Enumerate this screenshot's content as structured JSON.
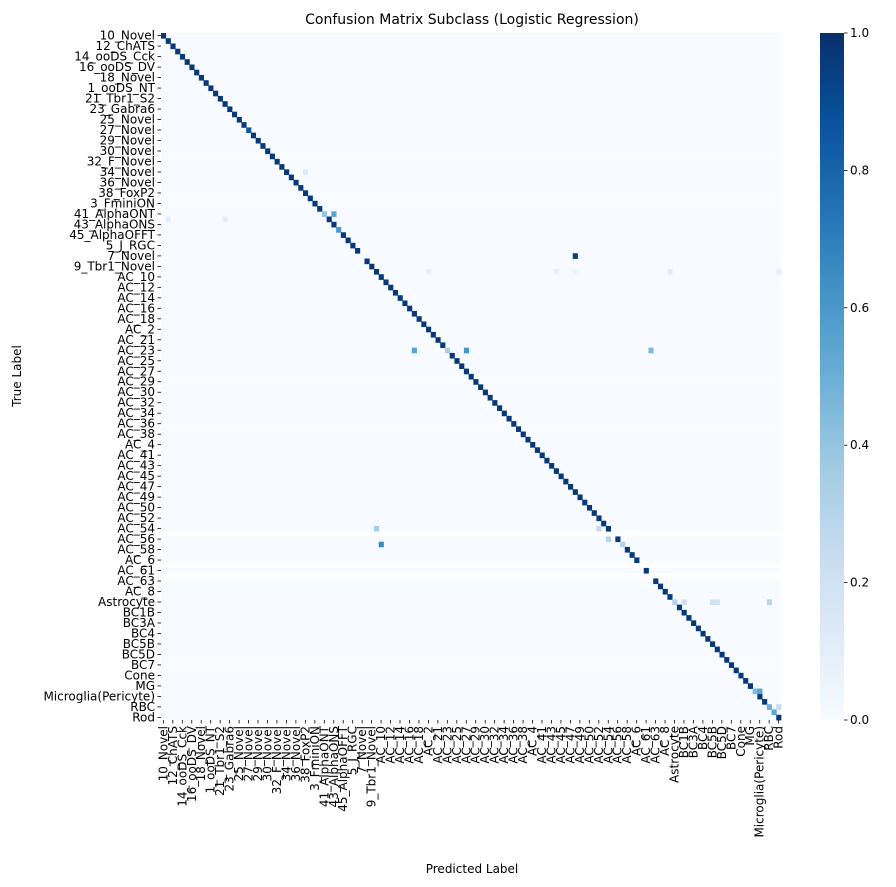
{
  "chart_data": {
    "type": "heatmap",
    "title": "Confusion Matrix Subclass (Logistic Regression)",
    "xlabel": "Predicted Label",
    "ylabel": "True Label",
    "colormap": "Blues",
    "colorbar": {
      "range": [
        0,
        1
      ],
      "ticks": [
        "0.0",
        "0.2",
        "0.4",
        "0.6",
        "0.8",
        "1.0"
      ],
      "low_color": "#f7fbff",
      "high_color": "#08306b"
    },
    "labels": [
      "10_Novel",
      "11_Novel",
      "12_ChATS",
      "13_Novel",
      "14_ooDS_Cck",
      "15_Novel",
      "16_ooDS_DV",
      "17_Novel",
      "18_Novel",
      "19_Novel",
      "1_ooDS_NT",
      "20_Novel",
      "21_Tbr1_S2",
      "22_Novel",
      "23_Gabra6",
      "24_Novel",
      "25_Novel",
      "26_Novel",
      "27_Novel",
      "28_FoxP2",
      "29_Novel",
      "2_W3D1.1",
      "30_Novel",
      "31_Novel",
      "32_F_Novel",
      "33_Novel",
      "34_Novel",
      "35_Novel",
      "36_Novel",
      "37_Novel",
      "38_FoxP2",
      "39_Novel",
      "3_FminiON",
      "40_Novel",
      "41_AlphaONT",
      "42_AlphaOFFS",
      "43_AlphaONS",
      "44_Novel",
      "45_AlphaOFFT",
      "4_FminiOFF",
      "5_J_RGC",
      "6_W3B",
      "7_Novel",
      "8_Novel",
      "9_Tbr1_Novel",
      "AC_1",
      "AC_10",
      "AC_11",
      "AC_12",
      "AC_13",
      "AC_14",
      "AC_15",
      "AC_16",
      "AC_17",
      "AC_18",
      "AC_19",
      "AC_2",
      "AC_20",
      "AC_21",
      "AC_22",
      "AC_23",
      "AC_24",
      "AC_25",
      "AC_26",
      "AC_27",
      "AC_28",
      "AC_29",
      "AC_3",
      "AC_30",
      "AC_31",
      "AC_32",
      "AC_33",
      "AC_34",
      "AC_35",
      "AC_36",
      "AC_37",
      "AC_38",
      "AC_39",
      "AC_4",
      "AC_40",
      "AC_41",
      "AC_42",
      "AC_43",
      "AC_44",
      "AC_45",
      "AC_46",
      "AC_47",
      "AC_48",
      "AC_49",
      "AC_5",
      "AC_50",
      "AC_51",
      "AC_52",
      "AC_53",
      "AC_54",
      "AC_55",
      "AC_56",
      "AC_57",
      "AC_58",
      "AC_59",
      "AC_6",
      "AC_60",
      "AC_61",
      "AC_62",
      "AC_63",
      "AC_7",
      "AC_8",
      "AC_9",
      "Astrocyte",
      "BC1A",
      "BC1B",
      "BC2",
      "BC3A",
      "BC3B",
      "BC4",
      "BC5A",
      "BC5B",
      "BC5C",
      "BC5D",
      "BC6",
      "BC7",
      "BC8",
      "Cone",
      "Endothelial",
      "MG",
      "Microglia",
      "Microglia(Pericyte)",
      "Pericyte",
      "RBC",
      "RPE",
      "Rod"
    ],
    "y_tick_labels": [
      "10_Novel",
      "12_ChATS",
      "14_ooDS_Cck",
      "16_ooDS_DV",
      "18_Novel",
      "1_ooDS_NT",
      "21_Tbr1_S2",
      "23_Gabra6",
      "25_Novel",
      "27_Novel",
      "29_Novel",
      "30_Novel",
      "32_F_Novel",
      "34_Novel",
      "36_Novel",
      "38_FoxP2",
      "3_FminiON",
      "41_AlphaONT",
      "43_AlphaONS",
      "45_AlphaOFFT",
      "5_J_RGC",
      "7_Novel",
      "9_Tbr1_Novel",
      "AC_10",
      "AC_12",
      "AC_14",
      "AC_16",
      "AC_18",
      "AC_2",
      "AC_21",
      "AC_23",
      "AC_25",
      "AC_27",
      "AC_29",
      "AC_30",
      "AC_32",
      "AC_34",
      "AC_36",
      "AC_38",
      "AC_4",
      "AC_41",
      "AC_43",
      "AC_45",
      "AC_47",
      "AC_49",
      "AC_50",
      "AC_52",
      "AC_54",
      "AC_56",
      "AC_58",
      "AC_6",
      "AC_61",
      "AC_63",
      "AC_8",
      "Astrocyte",
      "BC1B",
      "BC3A",
      "BC4",
      "BC5B",
      "BC5D",
      "BC7",
      "Cone",
      "MG",
      "Microglia(Pericyte)",
      "RBC",
      "Rod"
    ],
    "x_tick_labels": [
      "10_Novel",
      "12_ChATS",
      "14_ooDS_Cck",
      "16_ooDS_DV",
      "18_Novel",
      "1_ooDS_NT",
      "21_Tbr1_S2",
      "23_Gabra6",
      "25_Novel",
      "27_Novel",
      "29_Novel",
      "30_Novel",
      "32_F_Novel",
      "34_Novel",
      "36_Novel",
      "38_FoxP2",
      "3_FminiON",
      "41_AlphaONT",
      "43_AlphaONS",
      "45_AlphaOFFT",
      "5_J_RGC",
      "7_Novel",
      "9_Tbr1_Novel",
      "AC_10",
      "AC_12",
      "AC_14",
      "AC_16",
      "AC_18",
      "AC_2",
      "AC_21",
      "AC_23",
      "AC_25",
      "AC_27",
      "AC_29",
      "AC_30",
      "AC_32",
      "AC_34",
      "AC_36",
      "AC_38",
      "AC_4",
      "AC_41",
      "AC_43",
      "AC_45",
      "AC_47",
      "AC_49",
      "AC_50",
      "AC_52",
      "AC_54",
      "AC_56",
      "AC_58",
      "AC_6",
      "AC_61",
      "AC_63",
      "AC_8",
      "Astrocyte",
      "BC1B",
      "BC3A",
      "BC4",
      "BC5B",
      "BC5D",
      "BC7",
      "Cone",
      "MG",
      "Microglia(Pericyte)",
      "RBC",
      "Rod"
    ],
    "diagonal_default": 0.97,
    "empty_rows": [
      "AC_55",
      "AC_60",
      "AC_62"
    ],
    "cells": [
      {
        "row": "7_Novel",
        "col": "AC_48",
        "value": 0.95
      },
      {
        "row": "7_Novel",
        "col": "7_Novel",
        "value": 0.02
      },
      {
        "row": "41_AlphaONT",
        "col": "43_AlphaONS",
        "value": 0.55
      },
      {
        "row": "41_AlphaONT",
        "col": "41_AlphaONT",
        "value": 0.4
      },
      {
        "row": "AC_23",
        "col": "AC_27",
        "value": 0.6
      },
      {
        "row": "AC_23",
        "col": "AC_62",
        "value": 0.45
      },
      {
        "row": "AC_23",
        "col": "AC_17",
        "value": 0.55
      },
      {
        "row": "AC_23",
        "col": "AC_23",
        "value": 0.35
      },
      {
        "row": "AC_54",
        "col": "AC_1",
        "value": 0.35
      },
      {
        "row": "AC_54",
        "col": "AC_52",
        "value": 0.25
      },
      {
        "row": "AC_56",
        "col": "AC_54",
        "value": 0.3
      },
      {
        "row": "AC_57",
        "col": "AC_10",
        "value": 0.65
      },
      {
        "row": "AC_57",
        "col": "AC_57",
        "value": 0.3
      },
      {
        "row": "Microglia",
        "col": "Microglia(Pericyte)",
        "value": 0.55
      },
      {
        "row": "Microglia",
        "col": "Microglia",
        "value": 0.45
      },
      {
        "row": "Astrocyte",
        "col": "BC1B",
        "value": 0.22
      },
      {
        "row": "Astrocyte",
        "col": "BC5B",
        "value": 0.2
      },
      {
        "row": "Astrocyte",
        "col": "BC5C",
        "value": 0.2
      },
      {
        "row": "Astrocyte",
        "col": "RBC",
        "value": 0.3
      },
      {
        "row": "Astrocyte",
        "col": "Astrocyte",
        "value": 0.3
      },
      {
        "row": "RBC",
        "col": "RBC",
        "value": 0.5
      },
      {
        "row": "RBC",
        "col": "Rod",
        "value": 0.25
      },
      {
        "row": "RPE",
        "col": "RPE",
        "value": 0.55
      },
      {
        "row": "AC_1",
        "col": "AC_9",
        "value": 0.12
      },
      {
        "row": "AC_1",
        "col": "AC_2",
        "value": 0.08
      },
      {
        "row": "AC_1",
        "col": "AC_44",
        "value": 0.08
      },
      {
        "row": "AC_1",
        "col": "AC_48",
        "value": 0.06
      },
      {
        "row": "AC_1",
        "col": "Rod",
        "value": 0.08
      },
      {
        "row": "27_Novel",
        "col": "27_Novel",
        "value": 0.85
      },
      {
        "row": "44_Novel",
        "col": "44_Novel",
        "value": 0.6
      },
      {
        "row": "34_Novel",
        "col": "38_FoxP2",
        "value": 0.12
      },
      {
        "row": "42_AlphaOFFS",
        "col": "11_Novel",
        "value": 0.1
      },
      {
        "row": "42_AlphaOFFS",
        "col": "22_Novel",
        "value": 0.1
      }
    ]
  }
}
